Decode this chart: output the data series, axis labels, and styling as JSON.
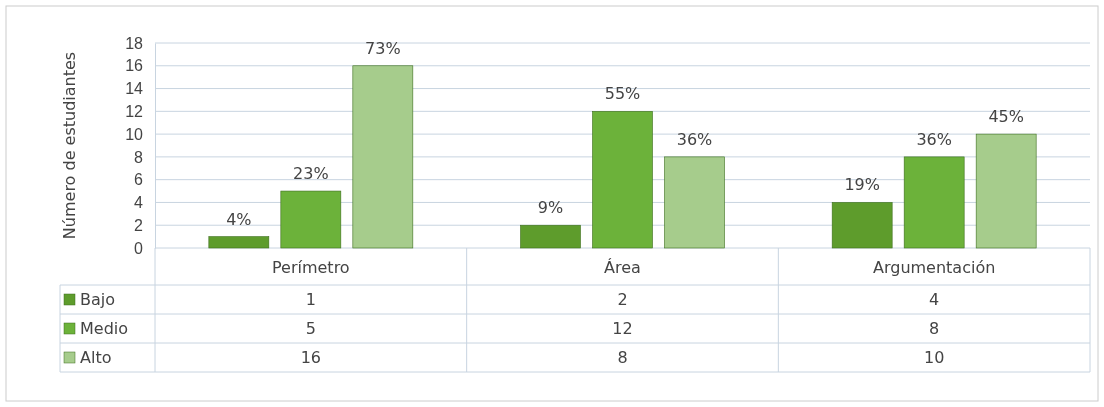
{
  "chart_data": {
    "type": "bar",
    "ylabel": "Número de estudiantes",
    "categories": [
      "Perímetro",
      "Área",
      "Argumentación"
    ],
    "series": [
      {
        "name": "Bajo",
        "color": "#5e9c2c",
        "values": [
          1,
          2,
          4
        ]
      },
      {
        "name": "Medio",
        "color": "#6cb23a",
        "values": [
          5,
          12,
          8
        ]
      },
      {
        "name": "Alto",
        "color": "#a6cc8c",
        "values": [
          16,
          8,
          10
        ]
      }
    ],
    "annotations": [
      "4%",
      "9%",
      "19%",
      "23%",
      "55%",
      "36%",
      "73%",
      "36%",
      "45%"
    ],
    "ylim": [
      0,
      18
    ],
    "yticks": [
      0,
      2,
      4,
      6,
      8,
      10,
      12,
      14,
      16,
      18
    ],
    "grid": "y",
    "data_labels": true,
    "legend": "bottom left"
  }
}
